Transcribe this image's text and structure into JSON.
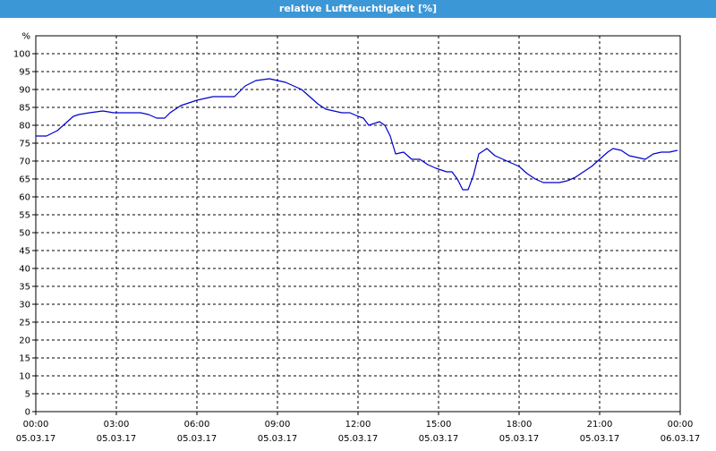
{
  "window": {
    "title": "relative Luftfeuchtigkeit [%]"
  },
  "colors": {
    "titlebar": "#3c97d6",
    "title_text": "#ffffff",
    "line": "#0000cc",
    "grid": "#000000",
    "background": "#ffffff"
  },
  "chart_data": {
    "type": "line",
    "title": "relative Luftfeuchtigkeit [%]",
    "ylabel": "%",
    "xlabel": "",
    "ylim": [
      0,
      105
    ],
    "yticks": [
      0,
      5,
      10,
      15,
      20,
      25,
      30,
      35,
      40,
      45,
      50,
      55,
      60,
      65,
      70,
      75,
      80,
      85,
      90,
      95,
      100
    ],
    "xlim_hours": [
      0,
      24
    ],
    "xticks": [
      {
        "hour": 0,
        "time": "00:00",
        "date": "05.03.17"
      },
      {
        "hour": 3,
        "time": "03:00",
        "date": "05.03.17"
      },
      {
        "hour": 6,
        "time": "06:00",
        "date": "05.03.17"
      },
      {
        "hour": 9,
        "time": "09:00",
        "date": "05.03.17"
      },
      {
        "hour": 12,
        "time": "12:00",
        "date": "05.03.17"
      },
      {
        "hour": 15,
        "time": "15:00",
        "date": "05.03.17"
      },
      {
        "hour": 18,
        "time": "18:00",
        "date": "05.03.17"
      },
      {
        "hour": 21,
        "time": "21:00",
        "date": "05.03.17"
      },
      {
        "hour": 24,
        "time": "00:00",
        "date": "06.03.17"
      }
    ],
    "grid": true,
    "series": [
      {
        "x_hours": [
          0,
          0.4,
          0.8,
          1.1,
          1.4,
          1.6,
          2.0,
          2.5,
          2.9,
          3.3,
          3.7,
          3.9,
          4.2,
          4.5,
          4.8,
          5.0,
          5.4,
          5.8,
          6.0,
          6.3,
          6.6,
          6.9,
          7.1,
          7.4,
          7.8,
          8.2,
          8.7,
          9.0,
          9.3,
          9.6,
          9.9,
          10.2,
          10.5,
          10.8,
          11.1,
          11.4,
          11.7,
          12.0,
          12.2,
          12.4,
          12.6,
          12.8,
          13.0,
          13.2,
          13.4,
          13.7,
          14.0,
          14.3,
          14.6,
          14.9,
          15.1,
          15.3,
          15.5,
          15.7,
          15.9,
          16.1,
          16.3,
          16.5,
          16.8,
          17.1,
          17.4,
          17.7,
          18.0,
          18.3,
          18.6,
          18.9,
          19.2,
          19.5,
          19.8,
          20.1,
          20.4,
          20.7,
          21.0,
          21.3,
          21.5,
          21.8,
          22.1,
          22.4,
          22.7,
          23.0,
          23.3,
          23.6,
          23.9
        ],
        "values": [
          77,
          77,
          78.5,
          80.5,
          82.5,
          83,
          83.5,
          84,
          83.5,
          83.5,
          83.5,
          83.5,
          83,
          82,
          82,
          83.5,
          85.5,
          86.5,
          87,
          87.5,
          88,
          88,
          88,
          88,
          91,
          92.5,
          93,
          92.5,
          92,
          91,
          90,
          88,
          86,
          84.5,
          84,
          83.5,
          83.5,
          82.5,
          82,
          80,
          80.5,
          81,
          80,
          77,
          72,
          72.5,
          70.5,
          70.5,
          69,
          68,
          67.5,
          67,
          67,
          65,
          62,
          62,
          66,
          72,
          73.5,
          71.5,
          70.5,
          69.5,
          68.5,
          66.5,
          65,
          64,
          64,
          64,
          64.5,
          65.5,
          67,
          68.5,
          70.5,
          72.5,
          73.5,
          73,
          71.5,
          71,
          70.5,
          72,
          72.5,
          72.5,
          73
        ]
      }
    ]
  }
}
